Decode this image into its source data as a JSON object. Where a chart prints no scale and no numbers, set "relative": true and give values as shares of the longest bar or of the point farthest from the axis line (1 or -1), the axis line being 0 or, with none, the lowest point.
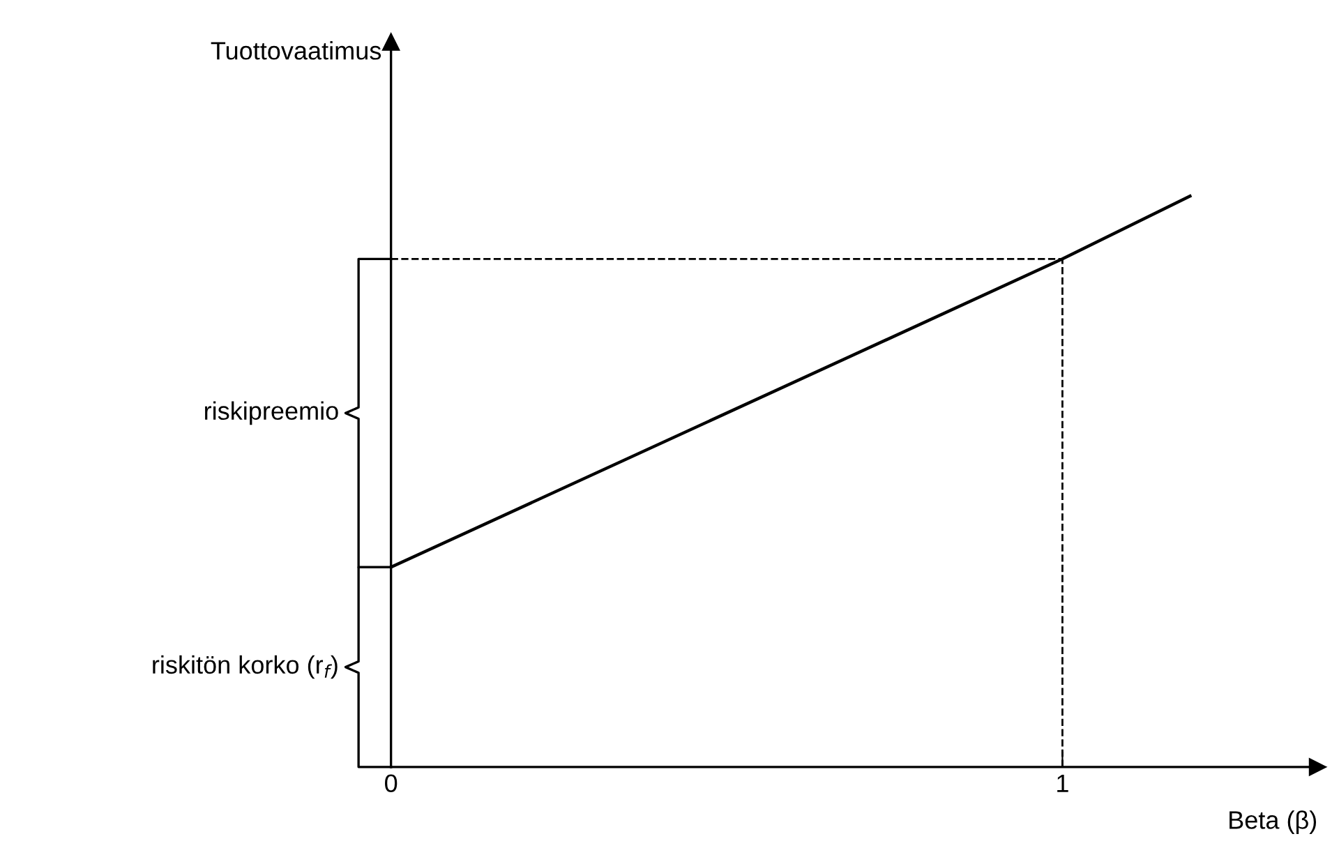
{
  "chart_data": {
    "type": "line",
    "relative": true,
    "x": [
      0,
      1,
      1.19
    ],
    "series": [
      {
        "color": "#000000",
        "values": [
          0.35,
          0.89,
          1
        ]
      }
    ],
    "xlim": [
      0,
      1.38
    ],
    "xticks": [
      0,
      1
    ],
    "xlabel": "Beta (β)",
    "ref_lines": [
      {
        "axis": "x",
        "value": 1,
        "line_style": "dashed",
        "color": "#000000"
      },
      {
        "axis": "y",
        "value": 0.89,
        "line_style": "dashed",
        "color": "#000000"
      }
    ],
    "annotations": [
      "Tuottovaatimus",
      "riskipreemio",
      "riskitön korko (r$_{f}$)"
    ],
    "grid": false,
    "marker": "none",
    "line_style": "solid"
  }
}
